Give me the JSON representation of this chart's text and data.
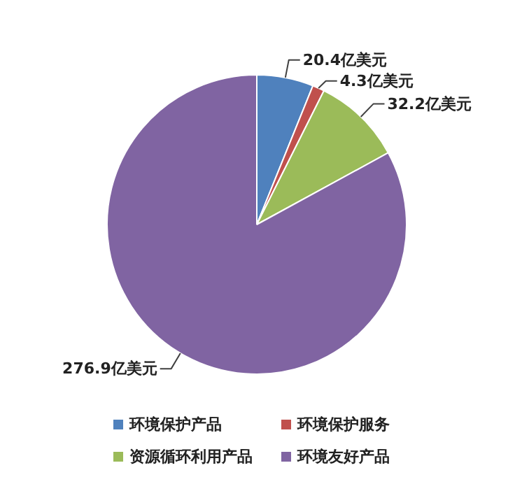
{
  "chart_data": {
    "type": "pie",
    "categories": [
      "环境保护产品",
      "环境保护服务",
      "资源循环利用产品",
      "环境友好产品"
    ],
    "values": [
      20.4,
      4.3,
      32.2,
      276.9
    ],
    "value_labels": [
      "20.4亿美元",
      "4.3亿美元",
      "32.2亿美元",
      "276.9亿美元"
    ],
    "colors": [
      "#4f81bd",
      "#c0504d",
      "#9bbb59",
      "#8064a2"
    ],
    "legend": "bottom"
  }
}
